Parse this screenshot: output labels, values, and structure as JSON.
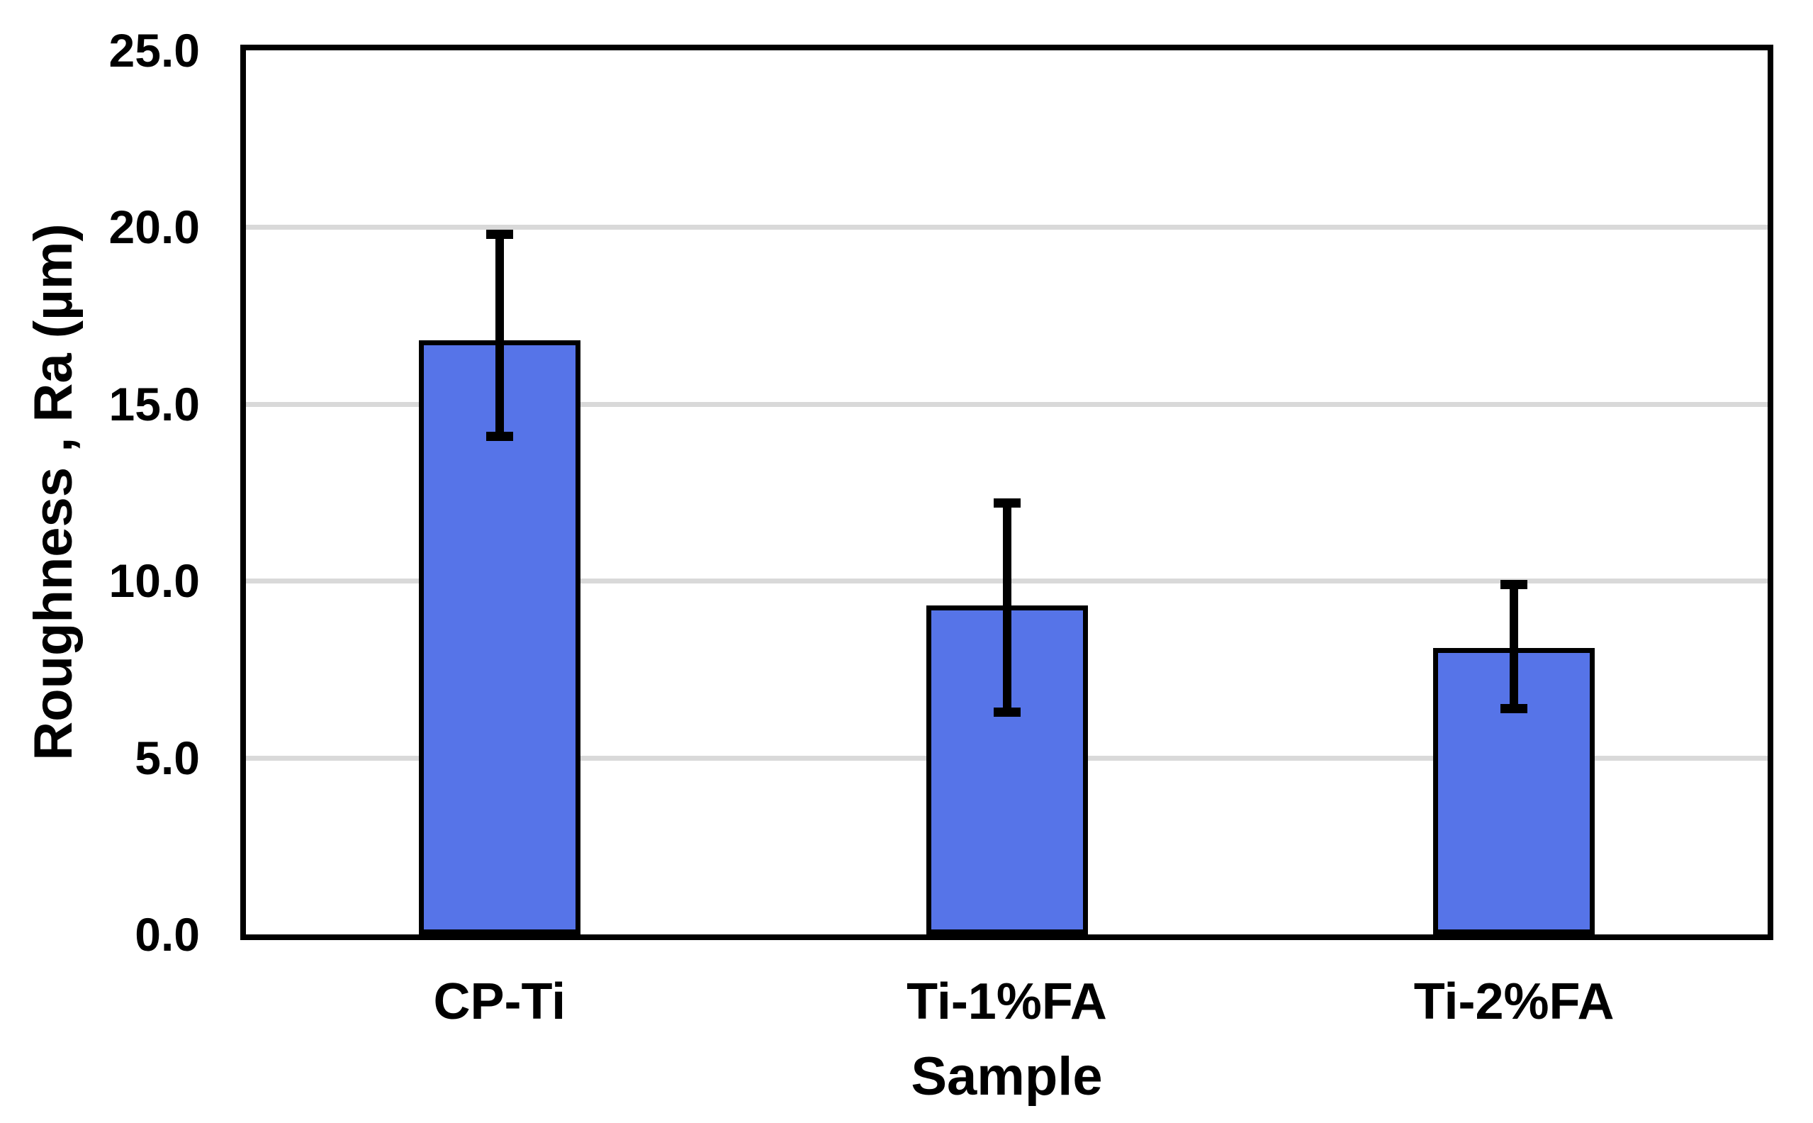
{
  "figure": {
    "background": "#ffffff",
    "text_color": "#000000"
  },
  "chart_data": {
    "type": "bar",
    "title": "",
    "xlabel": "Sample",
    "ylabel": "Roughness , Ra (µm)",
    "categories": [
      "CP-Ti",
      "Ti-1%FA",
      "Ti-2%FA"
    ],
    "values": [
      16.8,
      9.3,
      8.1
    ],
    "error_bars": {
      "upper_values": [
        19.8,
        12.2,
        9.9
      ],
      "lower_values": [
        14.1,
        6.3,
        6.4
      ]
    },
    "ylim": [
      0,
      25
    ],
    "ytick_labels": [
      "25.0",
      "20.0",
      "15.0",
      "10.0",
      "5.0",
      "0.0"
    ],
    "grid": true,
    "legend_position": "none",
    "bar_color": "#5674E8",
    "bar_border_color": "#000000",
    "error_bar_color": "#000000",
    "gridline_color": "#D9D9D9",
    "axis_color": "#000000"
  }
}
